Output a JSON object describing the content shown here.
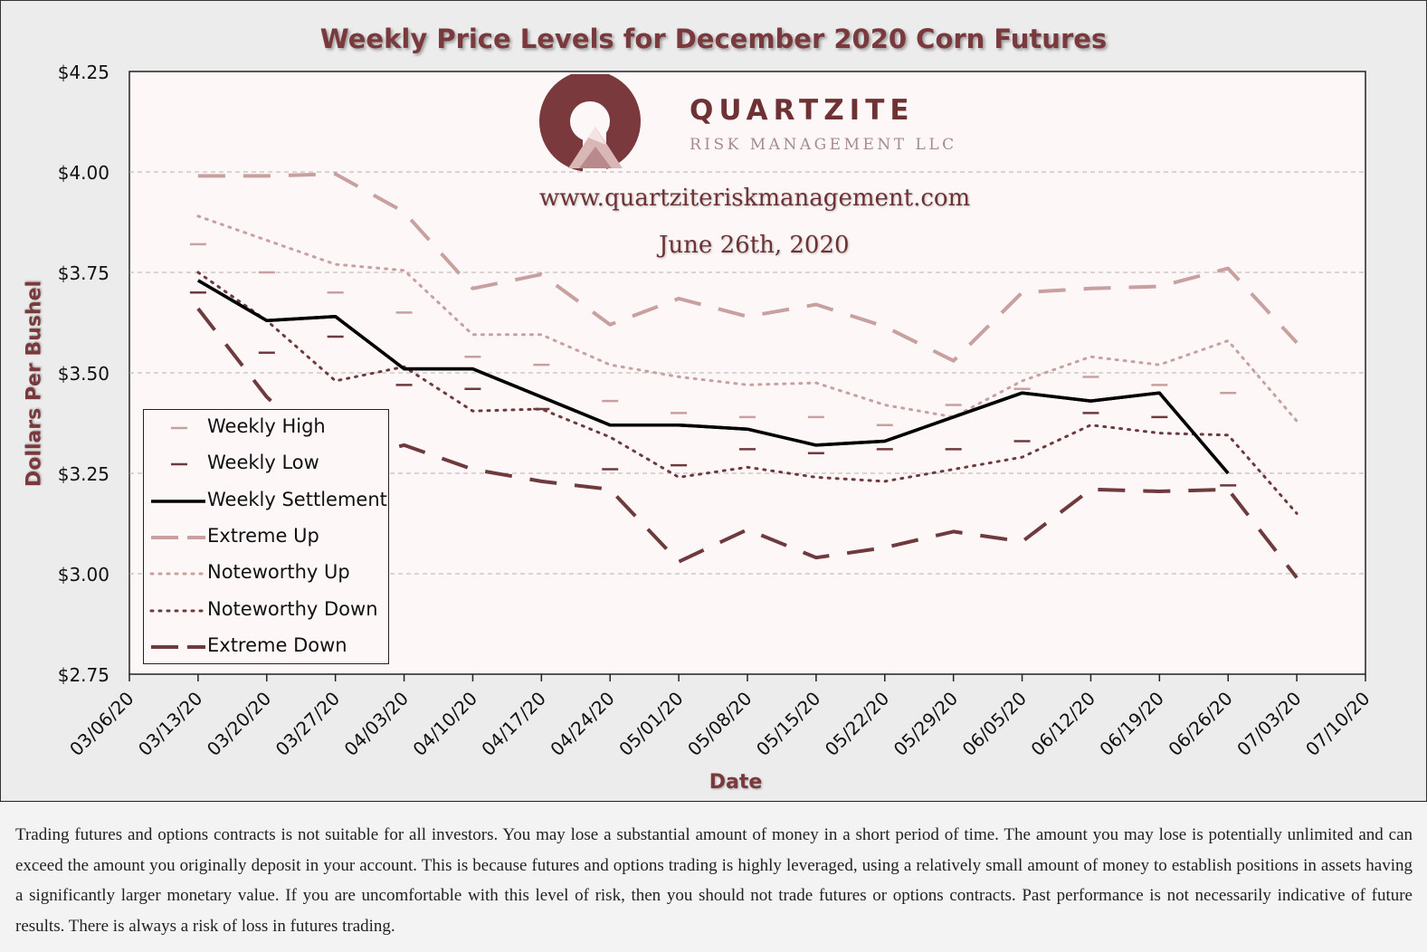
{
  "chart_data": {
    "type": "line",
    "title": "Weekly Price Levels for December 2020 Corn Futures",
    "xlabel": "Date",
    "ylabel": "Dollars Per Bushel",
    "ylim": [
      2.75,
      4.25
    ],
    "yticks": [
      2.75,
      3.0,
      3.25,
      3.5,
      3.75,
      4.0,
      4.25
    ],
    "ytick_labels": [
      "$2.75",
      "$3.00",
      "$3.25",
      "$3.50",
      "$3.75",
      "$4.00",
      "$4.25"
    ],
    "x_ticks": [
      "03/06/20",
      "03/13/20",
      "03/20/20",
      "03/27/20",
      "04/03/20",
      "04/10/20",
      "04/17/20",
      "04/24/20",
      "05/01/20",
      "05/08/20",
      "05/15/20",
      "05/22/20",
      "05/29/20",
      "06/05/20",
      "06/12/20",
      "06/19/20",
      "06/26/20",
      "07/03/20",
      "07/10/20"
    ],
    "grid": "horizontal dashed",
    "legend_position": "left",
    "series": [
      {
        "name": "Weekly High",
        "style": "tick",
        "color": "#c9a0a0",
        "x": [
          "03/13/20",
          "03/20/20",
          "03/27/20",
          "04/03/20",
          "04/10/20",
          "04/17/20",
          "04/24/20",
          "05/01/20",
          "05/08/20",
          "05/15/20",
          "05/22/20",
          "05/29/20",
          "06/05/20",
          "06/12/20",
          "06/19/20",
          "06/26/20"
        ],
        "values": [
          3.82,
          3.75,
          3.7,
          3.65,
          3.54,
          3.52,
          3.43,
          3.4,
          3.39,
          3.39,
          3.37,
          3.42,
          3.46,
          3.49,
          3.47,
          3.45
        ]
      },
      {
        "name": "Weekly Low",
        "style": "tick",
        "color": "#6e3a3d",
        "x": [
          "03/13/20",
          "03/20/20",
          "03/27/20",
          "04/03/20",
          "04/10/20",
          "04/17/20",
          "04/24/20",
          "05/01/20",
          "05/08/20",
          "05/15/20",
          "05/22/20",
          "05/29/20",
          "06/05/20",
          "06/12/20",
          "06/19/20",
          "06/26/20"
        ],
        "values": [
          3.7,
          3.55,
          3.59,
          3.47,
          3.46,
          3.41,
          3.26,
          3.27,
          3.31,
          3.3,
          3.31,
          3.31,
          3.33,
          3.4,
          3.39,
          3.22
        ]
      },
      {
        "name": "Weekly Settlement",
        "style": "solid",
        "color": "#000000",
        "x": [
          "03/13/20",
          "03/20/20",
          "03/27/20",
          "04/03/20",
          "04/10/20",
          "04/17/20",
          "04/24/20",
          "05/01/20",
          "05/08/20",
          "05/15/20",
          "05/22/20",
          "05/29/20",
          "06/05/20",
          "06/12/20",
          "06/19/20",
          "06/26/20"
        ],
        "values": [
          3.73,
          3.63,
          3.64,
          3.51,
          3.51,
          3.44,
          3.37,
          3.37,
          3.36,
          3.32,
          3.33,
          3.39,
          3.45,
          3.43,
          3.45,
          3.25
        ]
      },
      {
        "name": "Extreme Up",
        "style": "longdash",
        "color": "#c9a0a0",
        "x": [
          "03/13/20",
          "03/20/20",
          "03/27/20",
          "04/03/20",
          "04/10/20",
          "04/17/20",
          "04/24/20",
          "05/01/20",
          "05/08/20",
          "05/15/20",
          "05/22/20",
          "05/29/20",
          "06/05/20",
          "06/12/20",
          "06/19/20",
          "06/26/20",
          "07/03/20"
        ],
        "values": [
          3.99,
          3.99,
          3.995,
          3.9,
          3.71,
          3.745,
          3.62,
          3.685,
          3.64,
          3.67,
          3.615,
          3.53,
          3.7,
          3.71,
          3.715,
          3.76,
          3.575
        ]
      },
      {
        "name": "Noteworthy Up",
        "style": "dotted",
        "color": "#c9a0a0",
        "x": [
          "03/13/20",
          "03/20/20",
          "03/27/20",
          "04/03/20",
          "04/10/20",
          "04/17/20",
          "04/24/20",
          "05/01/20",
          "05/08/20",
          "05/15/20",
          "05/22/20",
          "05/29/20",
          "06/05/20",
          "06/12/20",
          "06/19/20",
          "06/26/20",
          "07/03/20"
        ],
        "values": [
          3.89,
          3.83,
          3.77,
          3.755,
          3.595,
          3.595,
          3.52,
          3.49,
          3.47,
          3.475,
          3.42,
          3.39,
          3.48,
          3.54,
          3.52,
          3.58,
          3.38
        ]
      },
      {
        "name": "Noteworthy Down",
        "style": "dotted",
        "color": "#6e3a3d",
        "x": [
          "03/13/20",
          "03/20/20",
          "03/27/20",
          "04/03/20",
          "04/10/20",
          "04/17/20",
          "04/24/20",
          "05/01/20",
          "05/08/20",
          "05/15/20",
          "05/22/20",
          "05/29/20",
          "06/05/20",
          "06/12/20",
          "06/19/20",
          "06/26/20",
          "07/03/20"
        ],
        "values": [
          3.75,
          3.63,
          3.48,
          3.515,
          3.405,
          3.41,
          3.34,
          3.24,
          3.265,
          3.24,
          3.23,
          3.26,
          3.29,
          3.37,
          3.35,
          3.345,
          3.15
        ]
      },
      {
        "name": "Extreme Down",
        "style": "longdash",
        "color": "#6e3a3d",
        "x": [
          "03/13/20",
          "03/20/20",
          "03/27/20",
          "04/03/20",
          "04/10/20",
          "04/17/20",
          "04/24/20",
          "05/01/20",
          "05/08/20",
          "05/15/20",
          "05/22/20",
          "05/29/20",
          "06/05/20",
          "06/12/20",
          "06/19/20",
          "06/26/20",
          "07/03/20"
        ],
        "values": [
          3.66,
          3.44,
          3.28,
          3.32,
          3.26,
          3.23,
          3.21,
          3.03,
          3.11,
          3.04,
          3.065,
          3.105,
          3.08,
          3.21,
          3.205,
          3.21,
          2.99
        ]
      }
    ]
  },
  "watermark": {
    "brand": "QUARTZITE",
    "subtitle": "RISK MANAGEMENT LLC",
    "url": "www.quartziteriskmanagement.com",
    "date": "June 26th, 2020"
  },
  "colors": {
    "plot_background": "#fdf8f7",
    "page_background": "#ececec",
    "title": "#7a3a3d",
    "light_series": "#c9a0a0",
    "dark_series": "#6e3a3d"
  },
  "disclaimer": "Trading futures and options contracts is not suitable for all investors. You may lose a substantial amount of money in a short period of time. The amount you may lose is potentially unlimited and can exceed the amount you originally deposit in your account. This is because futures and options trading is highly leveraged, using a relatively small amount of money to establish positions in assets having a significantly larger monetary value. If you are uncomfortable with this level of risk, then you should not trade futures or options contracts. Past performance is not necessarily indicative of future results. There is always a risk of loss in futures trading."
}
